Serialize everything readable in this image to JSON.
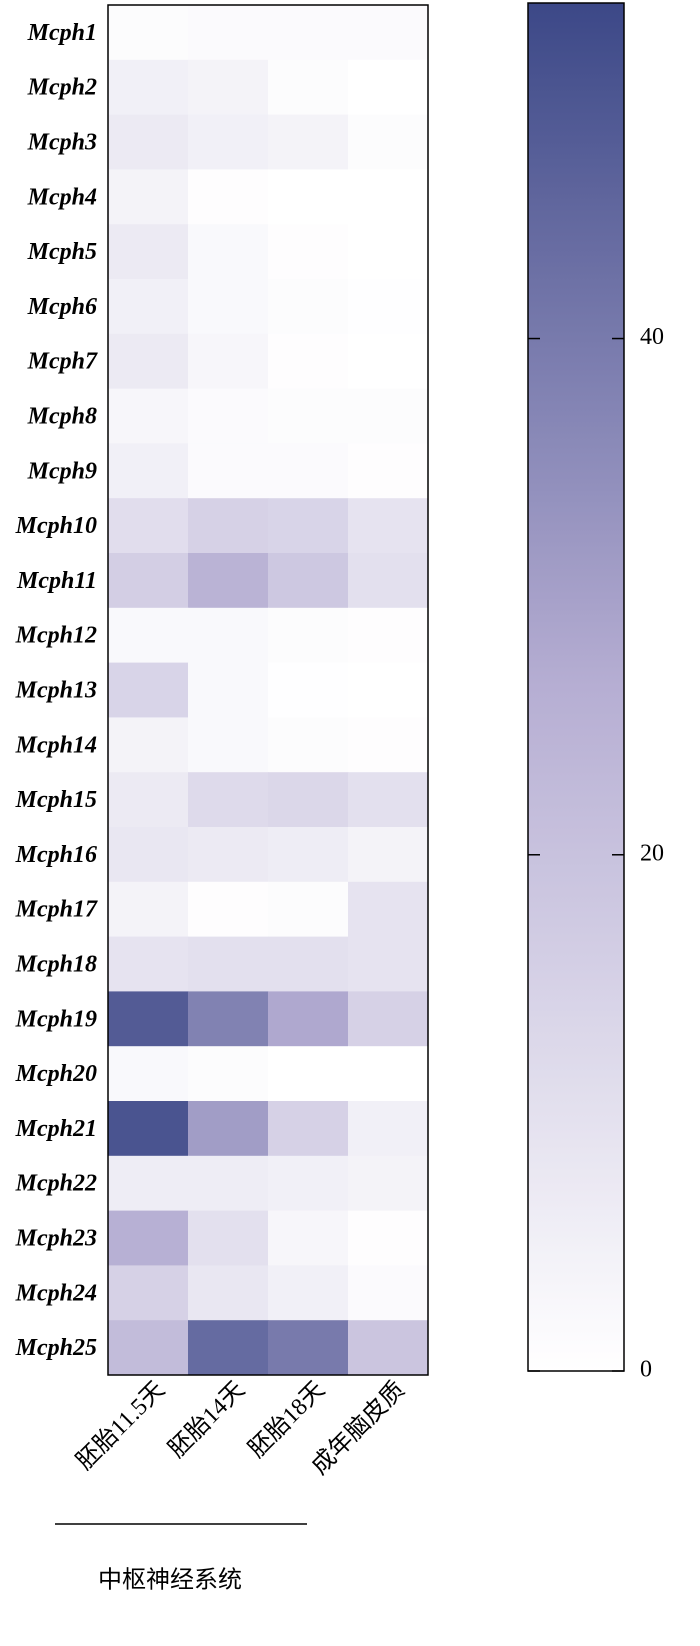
{
  "chart_data": {
    "type": "heatmap",
    "rows": [
      "Mcph1",
      "Mcph2",
      "Mcph3",
      "Mcph4",
      "Mcph5",
      "Mcph6",
      "Mcph7",
      "Mcph8",
      "Mcph9",
      "Mcph10",
      "Mcph11",
      "Mcph12",
      "Mcph13",
      "Mcph14",
      "Mcph15",
      "Mcph16",
      "Mcph17",
      "Mcph18",
      "Mcph19",
      "Mcph20",
      "Mcph21",
      "Mcph22",
      "Mcph23",
      "Mcph24",
      "Mcph25"
    ],
    "columns": [
      "胚胎11.5天",
      "胚胎14天",
      "胚胎18天",
      "成年脑皮质"
    ],
    "values": [
      [
        1,
        1.5,
        1.5,
        1.5
      ],
      [
        5,
        4,
        1,
        0
      ],
      [
        7,
        5,
        4,
        1
      ],
      [
        4,
        0.5,
        0,
        0
      ],
      [
        7,
        2,
        0.5,
        0
      ],
      [
        5,
        2,
        1,
        0.3
      ],
      [
        7,
        3,
        0.5,
        0
      ],
      [
        3,
        1.5,
        1,
        1
      ],
      [
        5,
        1.5,
        1.5,
        0.5
      ],
      [
        11,
        15,
        14,
        9
      ],
      [
        16,
        25,
        18,
        10
      ],
      [
        2,
        2,
        1,
        0.5
      ],
      [
        14,
        2,
        0.3,
        0
      ],
      [
        4,
        2,
        1,
        0.5
      ],
      [
        7,
        12,
        13,
        10
      ],
      [
        8,
        7,
        6,
        4
      ],
      [
        4,
        0.5,
        1,
        9
      ],
      [
        9,
        10,
        10,
        9
      ],
      [
        48,
        38,
        28,
        15
      ],
      [
        2,
        1,
        0,
        0
      ],
      [
        50,
        31,
        15,
        5
      ],
      [
        6,
        6,
        5,
        4
      ],
      [
        26,
        10,
        3,
        0.5
      ],
      [
        15,
        8,
        5,
        1.5
      ],
      [
        22,
        44,
        40,
        19
      ]
    ],
    "group_label": "中枢神经系统",
    "clim": [
      0,
      53
    ],
    "colorbar_ticks": [
      0,
      20,
      40
    ],
    "colormap": [
      "#ffffff",
      "#b6aed3",
      "#3c4887"
    ]
  }
}
